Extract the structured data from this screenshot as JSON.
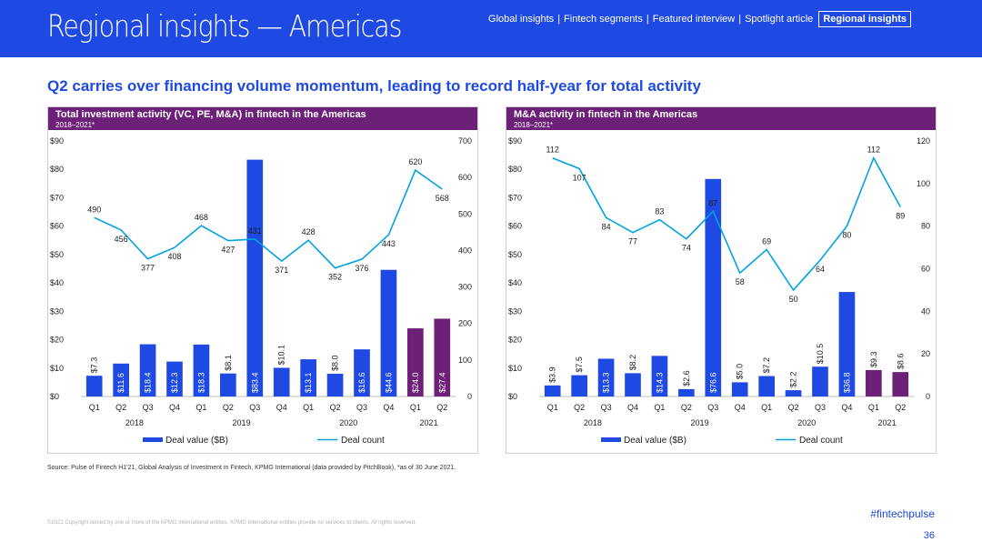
{
  "header": {
    "title": "Regional insights — Americas",
    "nav": [
      {
        "label": "Global insights"
      },
      {
        "label": "Fintech segments"
      },
      {
        "label": "Featured interview"
      },
      {
        "label": "Spotlight article"
      }
    ],
    "active_nav": "Regional insights"
  },
  "headline": "Q2 carries over financing volume momentum, leading to record half-year for total activity",
  "colors": {
    "brand_blue": "#1e49e2",
    "purple": "#6d2077",
    "bar_blue": "#1e49e2",
    "line": "#00a3e0"
  },
  "chart_data": [
    {
      "type": "bar",
      "title": "Total investment activity (VC, PE, M&A) in fintech in the Americas",
      "subtitle": "2018–2021*",
      "categories": [
        "Q1",
        "Q2",
        "Q3",
        "Q4",
        "Q1",
        "Q2",
        "Q3",
        "Q4",
        "Q1",
        "Q2",
        "Q3",
        "Q4",
        "Q1",
        "Q2"
      ],
      "years": [
        {
          "label": "2018",
          "start": 0,
          "end": 3
        },
        {
          "label": "2019",
          "start": 4,
          "end": 7
        },
        {
          "label": "2020",
          "start": 8,
          "end": 11
        },
        {
          "label": "2021",
          "start": 12,
          "end": 13
        }
      ],
      "highlight_from": 12,
      "series": [
        {
          "name": "Deal value ($B)",
          "type": "bar",
          "axis": "left",
          "values": [
            7.3,
            11.6,
            18.4,
            12.3,
            18.3,
            8.1,
            83.4,
            10.1,
            13.1,
            8.0,
            16.6,
            44.6,
            24.0,
            27.4
          ],
          "labels": [
            "$7.3",
            "$11.6",
            "$18.4",
            "$12.3",
            "$18.3",
            "$8.1",
            "$83.4",
            "$10.1",
            "$13.1",
            "$8.0",
            "$16.6",
            "$44.6",
            "$24.0",
            "$27.4"
          ]
        },
        {
          "name": "Deal count",
          "type": "line",
          "axis": "right",
          "values": [
            490,
            456,
            377,
            408,
            468,
            427,
            431,
            371,
            428,
            352,
            376,
            443,
            620,
            568
          ]
        }
      ],
      "left_axis": {
        "min": 0,
        "max": 90,
        "ticks": [
          "$0",
          "$10",
          "$20",
          "$30",
          "$40",
          "$50",
          "$60",
          "$70",
          "$80",
          "$90"
        ]
      },
      "right_axis": {
        "min": 0,
        "max": 700,
        "ticks": [
          "0",
          "100",
          "200",
          "300",
          "400",
          "500",
          "600",
          "700"
        ]
      },
      "legend": "bottom"
    },
    {
      "type": "bar",
      "title": "M&A activity in fintech in the Americas",
      "subtitle": "2018–2021*",
      "categories": [
        "Q1",
        "Q2",
        "Q3",
        "Q4",
        "Q1",
        "Q2",
        "Q3",
        "Q4",
        "Q1",
        "Q2",
        "Q3",
        "Q4",
        "Q1",
        "Q2"
      ],
      "years": [
        {
          "label": "2018",
          "start": 0,
          "end": 3
        },
        {
          "label": "2019",
          "start": 4,
          "end": 7
        },
        {
          "label": "2020",
          "start": 8,
          "end": 11
        },
        {
          "label": "2021",
          "start": 12,
          "end": 13
        }
      ],
      "highlight_from": 12,
      "series": [
        {
          "name": "Deal value ($B)",
          "type": "bar",
          "axis": "left",
          "values": [
            3.9,
            7.5,
            13.3,
            8.2,
            14.3,
            2.6,
            76.6,
            5.0,
            7.2,
            2.2,
            10.5,
            36.8,
            9.3,
            8.6
          ],
          "labels": [
            "$3.9",
            "$7.5",
            "$13.3",
            "$8.2",
            "$14.3",
            "$2.6",
            "$76.6",
            "$5.0",
            "$7.2",
            "$2.2",
            "$10.5",
            "$36.8",
            "$9.3",
            "$8.6"
          ]
        },
        {
          "name": "Deal count",
          "type": "line",
          "axis": "right",
          "values": [
            112,
            107,
            84,
            77,
            83,
            74,
            87,
            58,
            69,
            50,
            64,
            80,
            112,
            89
          ]
        }
      ],
      "left_axis": {
        "min": 0,
        "max": 90,
        "ticks": [
          "$0",
          "$10",
          "$20",
          "$30",
          "$40",
          "$50",
          "$60",
          "$70",
          "$80",
          "$90"
        ]
      },
      "right_axis": {
        "min": 0,
        "max": 120,
        "ticks": [
          "0",
          "20",
          "40",
          "60",
          "80",
          "100",
          "120"
        ]
      },
      "legend": "bottom"
    }
  ],
  "source": "Source: Pulse of Fintech H1'21, Global Analysis of Investment in Fintech, KPMG International (data provided by PitchBook), *as of 30 June 2021.",
  "copyright": "©2021 Copyright owned by one or more of the KPMG International entities. KPMG International entities provide no services to clients. All rights reserved.",
  "hashtag": "#fintechpulse",
  "page_number": "36"
}
